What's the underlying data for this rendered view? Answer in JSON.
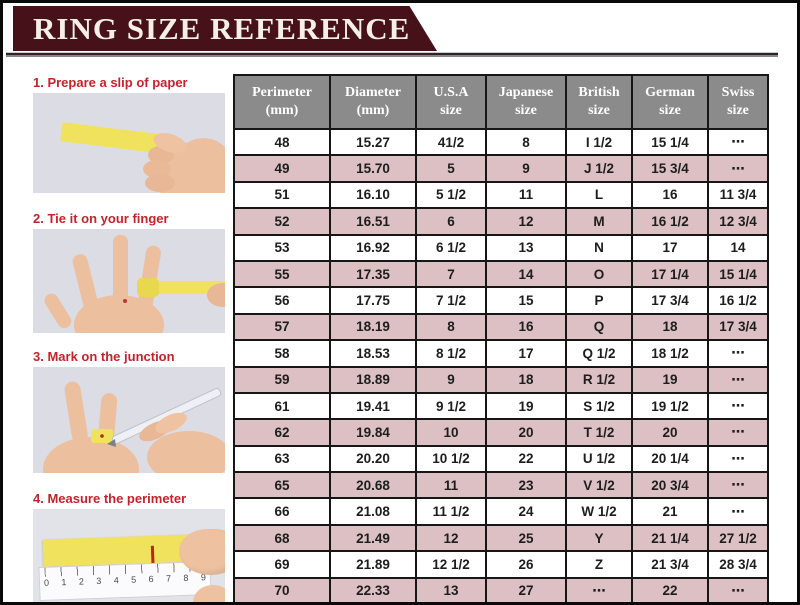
{
  "page": {
    "title": "RING SIZE REFERENCE"
  },
  "steps": [
    {
      "label": "1. Prepare a slip of paper"
    },
    {
      "label": "2. Tie it on your finger"
    },
    {
      "label": "3. Mark on the junction"
    },
    {
      "label": "4. Measure the perimeter",
      "ruler_numbers": [
        "0",
        "1",
        "2",
        "3",
        "4",
        "5",
        "6",
        "7",
        "8",
        "9"
      ]
    }
  ],
  "chart_data": {
    "type": "table",
    "title": "RING SIZE REFERENCE",
    "columns": [
      {
        "label": "Perimeter",
        "sub": "(mm)"
      },
      {
        "label": "Diameter",
        "sub": "(mm)"
      },
      {
        "label": "U.S.A",
        "sub": "size"
      },
      {
        "label": "Japanese",
        "sub": "size"
      },
      {
        "label": "British",
        "sub": "size"
      },
      {
        "label": "German",
        "sub": "size"
      },
      {
        "label": "Swiss",
        "sub": "size"
      }
    ],
    "rows": [
      [
        "48",
        "15.27",
        "41/2",
        "8",
        "I 1/2",
        "15 1/4",
        "⋯"
      ],
      [
        "49",
        "15.70",
        "5",
        "9",
        "J 1/2",
        "15 3/4",
        "⋯"
      ],
      [
        "51",
        "16.10",
        "5 1/2",
        "11",
        "L",
        "16",
        "11 3/4"
      ],
      [
        "52",
        "16.51",
        "6",
        "12",
        "M",
        "16 1/2",
        "12 3/4"
      ],
      [
        "53",
        "16.92",
        "6 1/2",
        "13",
        "N",
        "17",
        "14"
      ],
      [
        "55",
        "17.35",
        "7",
        "14",
        "O",
        "17 1/4",
        "15 1/4"
      ],
      [
        "56",
        "17.75",
        "7 1/2",
        "15",
        "P",
        "17 3/4",
        "16 1/2"
      ],
      [
        "57",
        "18.19",
        "8",
        "16",
        "Q",
        "18",
        "17 3/4"
      ],
      [
        "58",
        "18.53",
        "8 1/2",
        "17",
        "Q 1/2",
        "18 1/2",
        "⋯"
      ],
      [
        "59",
        "18.89",
        "9",
        "18",
        "R 1/2",
        "19",
        "⋯"
      ],
      [
        "61",
        "19.41",
        "9 1/2",
        "19",
        "S 1/2",
        "19 1/2",
        "⋯"
      ],
      [
        "62",
        "19.84",
        "10",
        "20",
        "T 1/2",
        "20",
        "⋯"
      ],
      [
        "63",
        "20.20",
        "10 1/2",
        "22",
        "U 1/2",
        "20 1/4",
        "⋯"
      ],
      [
        "65",
        "20.68",
        "11",
        "23",
        "V 1/2",
        "20 3/4",
        "⋯"
      ],
      [
        "66",
        "21.08",
        "11 1/2",
        "24",
        "W 1/2",
        "21",
        "⋯"
      ],
      [
        "68",
        "21.49",
        "12",
        "25",
        "Y",
        "21 1/4",
        "27 1/2"
      ],
      [
        "69",
        "21.89",
        "12 1/2",
        "26",
        "Z",
        "21 3/4",
        "28 3/4"
      ],
      [
        "70",
        "22.33",
        "13",
        "27",
        "⋯",
        "22",
        "⋯"
      ]
    ]
  },
  "colors": {
    "banner_bg": "#461119",
    "banner_text": "#f5efe5",
    "table_header_bg": "#8b8b8b",
    "table_header_text": "#ffffff",
    "row_pink": "#dcc0c3",
    "row_white": "#ffffff",
    "step_label_red": "#c4232b",
    "table_border": "#161616",
    "paper_strip_yellow": "#f0e25c",
    "photo_bg": "#dcdce4"
  }
}
